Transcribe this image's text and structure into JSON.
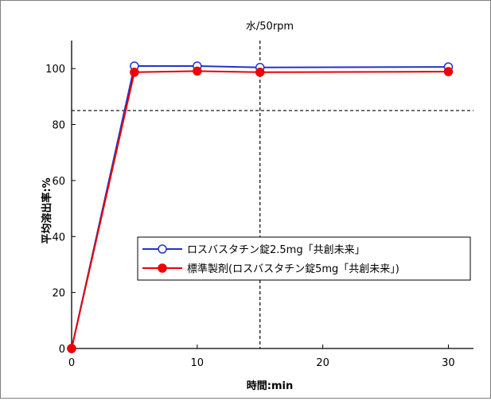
{
  "chart_data": {
    "type": "line",
    "title": "水/50rpm",
    "xlabel": "時間:min",
    "ylabel": "平均溶出率:%",
    "xlim": [
      0,
      32
    ],
    "ylim": [
      0,
      110
    ],
    "xticks": [
      0,
      10,
      20,
      30
    ],
    "yticks": [
      0,
      20,
      40,
      60,
      80,
      100
    ],
    "grid": false,
    "legend_position": "center-right",
    "reference_lines": [
      {
        "axis": "y",
        "value": 85,
        "style": "dashed"
      },
      {
        "axis": "x",
        "value": 15,
        "style": "dashed"
      }
    ],
    "series": [
      {
        "name": "ロスバスタチン錠2.5mg「共創未来」",
        "x": [
          0,
          5,
          10,
          15,
          30
        ],
        "y": [
          0,
          100.9,
          100.9,
          100.4,
          100.6
        ],
        "color": "#2233cc",
        "marker": "open-circle"
      },
      {
        "name": "標準製剤(ロスバスタチン錠5mg「共創未来」)",
        "x": [
          0,
          5,
          10,
          15,
          30
        ],
        "y": [
          0,
          98.7,
          99.1,
          98.7,
          98.9
        ],
        "color": "#ee0000",
        "marker": "filled-circle"
      }
    ]
  }
}
